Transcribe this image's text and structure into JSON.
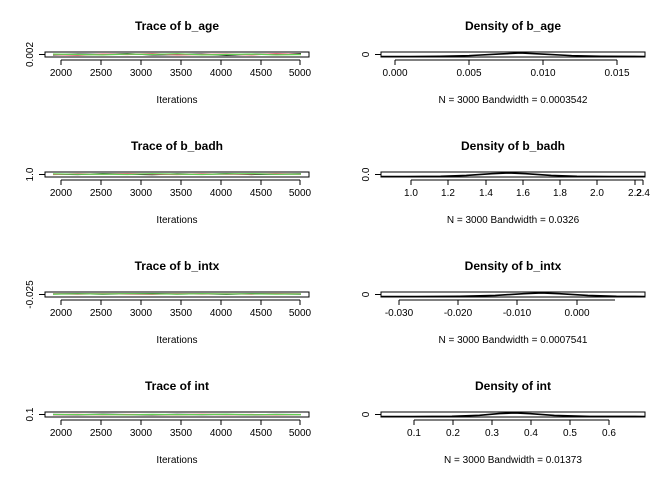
{
  "chart_data": [
    {
      "type": "line",
      "title": "Trace of b_age",
      "xlabel": "Iterations",
      "xlim": [
        2000,
        5000
      ],
      "x_ticks": [
        "2000",
        "2500",
        "3000",
        "3500",
        "4000",
        "4500",
        "5000"
      ],
      "y_ticks": [
        "0.002"
      ],
      "ylim": [
        0.0015,
        0.0025
      ],
      "series": [
        {
          "color": "#000000",
          "values": [
            0.0019,
            0.0021,
            0.002,
            0.0022,
            0.0019,
            0.002,
            0.0021,
            0.0018,
            0.0021,
            0.002,
            0.0022
          ]
        },
        {
          "color": "#df536b",
          "values": [
            0.002,
            0.0018,
            0.0021,
            0.002,
            0.0022,
            0.0019,
            0.002,
            0.0021,
            0.0019,
            0.0022,
            0.002
          ]
        },
        {
          "color": "#61d04f",
          "values": [
            0.0021,
            0.002,
            0.0019,
            0.0021,
            0.002,
            0.0022,
            0.0019,
            0.002,
            0.0021,
            0.0019,
            0.002
          ]
        }
      ]
    },
    {
      "type": "line",
      "title": "Density of b_age",
      "subtitle": "N = 3000   Bandwidth = 0.0003542",
      "x_ticks": [
        "0.000",
        "0.005",
        "0.010",
        "0.015"
      ],
      "xlim": [
        -0.001,
        0.017
      ],
      "y_ticks": [
        "0"
      ],
      "series": [
        {
          "color": "#000000",
          "x": [
            -0.001,
            0.001,
            0.003,
            0.005,
            0.007,
            0.0085,
            0.01,
            0.012,
            0.014,
            0.017
          ],
          "y": [
            0,
            0,
            0.05,
            0.25,
            0.7,
            1,
            0.7,
            0.25,
            0.05,
            0
          ]
        }
      ]
    },
    {
      "type": "line",
      "title": "Trace of b_badh",
      "xlabel": "Iterations",
      "xlim": [
        2000,
        5000
      ],
      "x_ticks": [
        "2000",
        "2500",
        "3000",
        "3500",
        "4000",
        "4500",
        "5000"
      ],
      "y_ticks": [
        "1.0"
      ],
      "ylim": [
        1.0,
        2.0
      ],
      "series": [
        {
          "color": "#000000",
          "values": [
            1.6,
            1.5,
            1.7,
            1.6,
            1.45,
            1.65,
            1.55,
            1.7,
            1.5,
            1.6,
            1.65
          ]
        },
        {
          "color": "#df536b",
          "values": [
            1.5,
            1.65,
            1.55,
            1.7,
            1.6,
            1.5,
            1.65,
            1.55,
            1.6,
            1.7,
            1.55
          ]
        },
        {
          "color": "#61d04f",
          "values": [
            1.65,
            1.55,
            1.6,
            1.5,
            1.7,
            1.6,
            1.5,
            1.65,
            1.7,
            1.55,
            1.6
          ]
        }
      ]
    },
    {
      "type": "line",
      "title": "Density of b_badh",
      "subtitle": "N = 3000   Bandwidth = 0.0326",
      "x_ticks": [
        "1.0",
        "1.2",
        "1.4",
        "1.6",
        "1.8",
        "2.0",
        "2.2",
        "2.4"
      ],
      "xlim": [
        0.85,
        2.4
      ],
      "y_ticks": [
        "0.0"
      ],
      "series": [
        {
          "color": "#000000",
          "x": [
            0.85,
            1.0,
            1.2,
            1.35,
            1.5,
            1.6,
            1.7,
            1.85,
            2.0,
            2.2,
            2.4
          ],
          "y": [
            0,
            0,
            0.05,
            0.3,
            0.8,
            1,
            0.8,
            0.3,
            0.05,
            0,
            0
          ]
        }
      ]
    },
    {
      "type": "line",
      "title": "Trace of b_intx",
      "xlabel": "Iterations",
      "xlim": [
        2000,
        5000
      ],
      "x_ticks": [
        "2000",
        "2500",
        "3000",
        "3500",
        "4000",
        "4500",
        "5000"
      ],
      "y_ticks": [
        "-0.025"
      ],
      "ylim": [
        -0.03,
        0.0
      ],
      "series": [
        {
          "color": "#000000",
          "values": [
            -0.011,
            -0.009,
            -0.012,
            -0.01,
            -0.008,
            -0.011,
            -0.01,
            -0.013,
            -0.009,
            -0.01,
            -0.012
          ]
        },
        {
          "color": "#df536b",
          "values": [
            -0.01,
            -0.012,
            -0.009,
            -0.011,
            -0.013,
            -0.009,
            -0.011,
            -0.01,
            -0.012,
            -0.009,
            -0.01
          ]
        },
        {
          "color": "#61d04f",
          "values": [
            -0.012,
            -0.01,
            -0.011,
            -0.009,
            -0.01,
            -0.012,
            -0.009,
            -0.011,
            -0.01,
            -0.012,
            -0.011
          ]
        }
      ]
    },
    {
      "type": "line",
      "title": "Density of b_intx",
      "subtitle": "N = 3000   Bandwidth = 0.0007541",
      "x_ticks": [
        "-0.030",
        "-0.020",
        "-0.010",
        "0.000"
      ],
      "xlim": [
        -0.033,
        0.004
      ],
      "y_ticks": [
        "0"
      ],
      "series": [
        {
          "color": "#000000",
          "x": [
            -0.033,
            -0.028,
            -0.022,
            -0.017,
            -0.013,
            -0.0105,
            -0.008,
            -0.004,
            0.0,
            0.004
          ],
          "y": [
            0,
            0,
            0.05,
            0.3,
            0.8,
            1,
            0.8,
            0.3,
            0.05,
            0
          ]
        }
      ]
    },
    {
      "type": "line",
      "title": "Trace of int",
      "xlabel": "Iterations",
      "xlim": [
        2000,
        5000
      ],
      "x_ticks": [
        "2000",
        "2500",
        "3000",
        "3500",
        "4000",
        "4500",
        "5000"
      ],
      "y_ticks": [
        "0.1"
      ],
      "ylim": [
        0.1,
        0.6
      ],
      "series": [
        {
          "color": "#000000",
          "values": [
            0.35,
            0.32,
            0.38,
            0.34,
            0.3,
            0.37,
            0.33,
            0.36,
            0.31,
            0.35,
            0.34
          ]
        },
        {
          "color": "#df536b",
          "values": [
            0.33,
            0.37,
            0.31,
            0.36,
            0.34,
            0.32,
            0.38,
            0.33,
            0.35,
            0.3,
            0.36
          ]
        },
        {
          "color": "#61d04f",
          "values": [
            0.36,
            0.34,
            0.35,
            0.31,
            0.37,
            0.33,
            0.34,
            0.38,
            0.32,
            0.36,
            0.33
          ]
        }
      ]
    },
    {
      "type": "line",
      "title": "Density of int",
      "subtitle": "N = 3000   Bandwidth = 0.01373",
      "x_ticks": [
        "0.1",
        "0.2",
        "0.3",
        "0.4",
        "0.5",
        "0.6"
      ],
      "xlim": [
        0.02,
        0.69
      ],
      "y_ticks": [
        "0"
      ],
      "series": [
        {
          "color": "#000000",
          "x": [
            0.02,
            0.1,
            0.2,
            0.27,
            0.32,
            0.36,
            0.4,
            0.46,
            0.55,
            0.69
          ],
          "y": [
            0,
            0,
            0.05,
            0.35,
            0.85,
            1,
            0.8,
            0.3,
            0.03,
            0
          ]
        }
      ]
    }
  ]
}
